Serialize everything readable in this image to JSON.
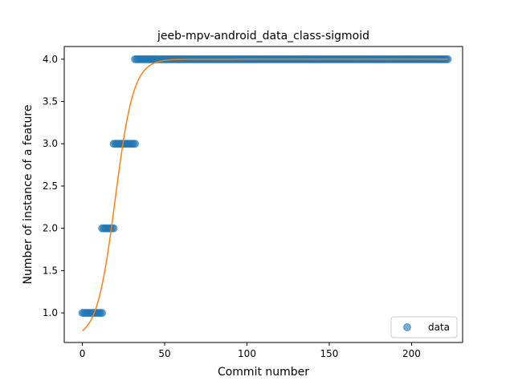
{
  "chart_data": {
    "type": "scatter",
    "title": "jeeb-mpv-android_data_class-sigmoid",
    "xlabel": "Commit number",
    "ylabel": "Number of instance of a feature",
    "xlim": [
      -11,
      231
    ],
    "ylim": [
      0.65,
      4.15
    ],
    "xticks": [
      0,
      50,
      100,
      150,
      200
    ],
    "yticks": [
      1.0,
      1.5,
      2.0,
      2.5,
      3.0,
      3.5,
      4.0
    ],
    "xtick_labels": [
      "0",
      "50",
      "100",
      "150",
      "200"
    ],
    "ytick_labels": [
      "1.0",
      "1.5",
      "2.0",
      "2.5",
      "3.0",
      "3.5",
      "4.0"
    ],
    "grid": false,
    "legend_position": "lower-right",
    "series": [
      {
        "name": "data",
        "kind": "scatter",
        "color": "#1f77b4",
        "groups": [
          {
            "y": 1,
            "x_from": 0,
            "x_to": 12
          },
          {
            "y": 2,
            "x_from": 12,
            "x_to": 19
          },
          {
            "y": 3,
            "x_from": 19,
            "x_to": 32
          },
          {
            "y": 4,
            "x_from": 32,
            "x_to": 222
          }
        ]
      },
      {
        "kind": "line",
        "color": "#ff7f0e",
        "model": "sigmoid",
        "params": {
          "lower": 0.7,
          "upper": 4.0,
          "midpoint": 20,
          "rate": 0.18
        },
        "x_range": [
          0,
          222
        ]
      }
    ]
  }
}
